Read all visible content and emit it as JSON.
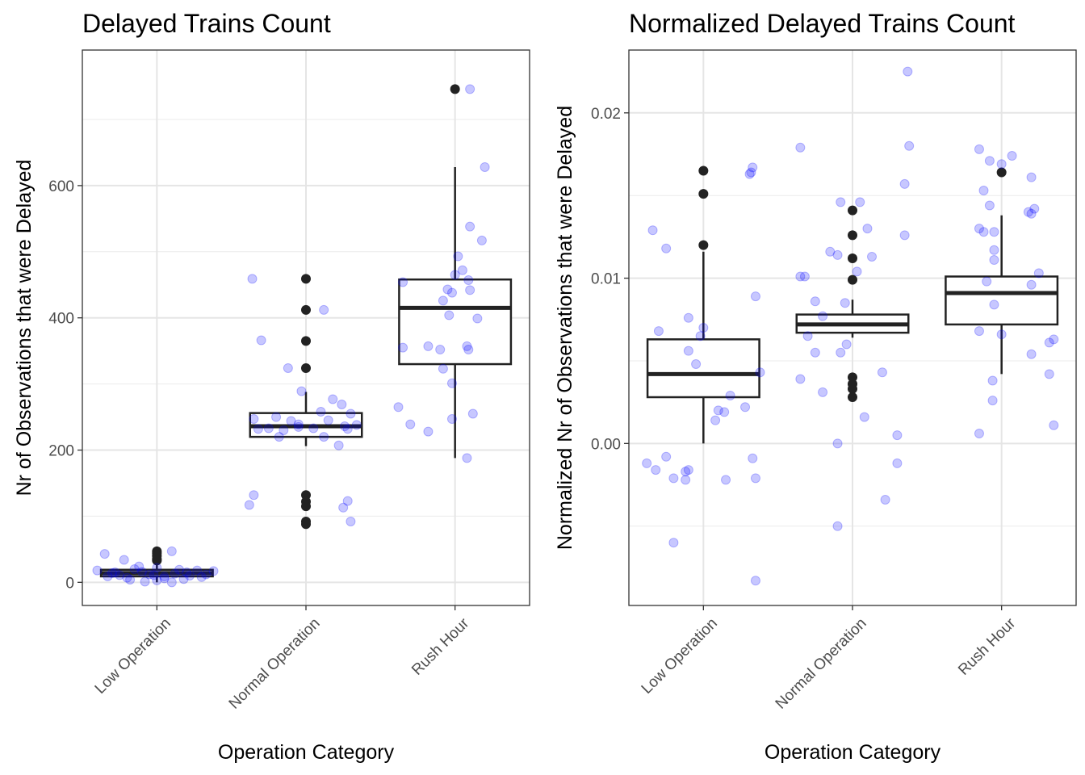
{
  "chart_data": [
    {
      "type": "boxplot",
      "title": "Delayed Trains Count",
      "xlabel": "Operation Category",
      "ylabel": "Nr of Observations that were Delayed",
      "categories": [
        "Low Operation",
        "Normal Operation",
        "Rush Hour"
      ],
      "ylim": [
        -35,
        805
      ],
      "yticks": [
        0,
        200,
        400,
        600
      ],
      "ytick_labels": [
        "0",
        "200",
        "400",
        "600"
      ],
      "grid": true,
      "point_color": "#0000ff",
      "box_color": "#222222",
      "boxes": [
        {
          "category": "Low Operation",
          "q1": 9,
          "median": 14,
          "q3": 19,
          "whisker_low": 0,
          "whisker_high": 33
        },
        {
          "category": "Normal Operation",
          "q1": 220,
          "median": 236,
          "q3": 256,
          "whisker_low": 206,
          "whisker_high": 288
        },
        {
          "category": "Rush Hour",
          "q1": 330,
          "median": 415,
          "q3": 458,
          "whisker_low": 188,
          "whisker_high": 628
        }
      ],
      "outliers": [
        {
          "category": "Low Operation",
          "values": [
            47,
            44,
            40,
            35,
            33
          ]
        },
        {
          "category": "Normal Operation",
          "values": [
            459,
            412,
            365,
            324,
            132,
            122,
            115,
            92,
            88
          ]
        },
        {
          "category": "Rush Hour",
          "values": [
            746
          ]
        }
      ],
      "jitter_points": [
        {
          "category": "Low Operation",
          "points": [
            [
              -0.35,
              43
            ],
            [
              -0.22,
              34
            ],
            [
              0.1,
              47
            ],
            [
              -0.4,
              18
            ],
            [
              -0.3,
              14
            ],
            [
              -0.25,
              11
            ],
            [
              -0.15,
              20
            ],
            [
              -0.1,
              16
            ],
            [
              -0.05,
              12
            ],
            [
              0.05,
              9
            ],
            [
              0.12,
              13
            ],
            [
              0.2,
              15
            ],
            [
              0.27,
              18
            ],
            [
              0.33,
              12
            ],
            [
              0.38,
              17
            ],
            [
              -0.33,
              9
            ],
            [
              -0.2,
              7
            ],
            [
              -0.18,
              4
            ],
            [
              -0.08,
              1
            ],
            [
              0.0,
              3
            ],
            [
              0.05,
              6
            ],
            [
              0.1,
              0
            ],
            [
              0.18,
              5
            ],
            [
              0.22,
              10
            ],
            [
              0.3,
              8
            ],
            [
              -0.12,
              24
            ],
            [
              0.0,
              22
            ],
            [
              -0.28,
              15
            ],
            [
              0.15,
              19
            ],
            [
              -0.02,
              11
            ]
          ]
        },
        {
          "category": "Normal Operation",
          "points": [
            [
              -0.36,
              459
            ],
            [
              0.12,
              412
            ],
            [
              -0.3,
              366
            ],
            [
              -0.12,
              324
            ],
            [
              -0.03,
              289
            ],
            [
              0.18,
              277
            ],
            [
              0.24,
              269
            ],
            [
              0.1,
              258
            ],
            [
              0.3,
              255
            ],
            [
              -0.2,
              250
            ],
            [
              -0.1,
              244
            ],
            [
              -0.35,
              247
            ],
            [
              -0.05,
              239
            ],
            [
              0.15,
              245
            ],
            [
              0.26,
              236
            ],
            [
              0.34,
              238
            ],
            [
              0.28,
              232
            ],
            [
              -0.25,
              233
            ],
            [
              -0.32,
              232
            ],
            [
              -0.15,
              230
            ],
            [
              -0.05,
              235
            ],
            [
              0.05,
              233
            ],
            [
              0.12,
              220
            ],
            [
              0.22,
              207
            ],
            [
              -0.18,
              220
            ],
            [
              -0.38,
              117
            ],
            [
              -0.35,
              132
            ],
            [
              0.25,
              113
            ],
            [
              0.28,
              123
            ],
            [
              0.3,
              92
            ]
          ]
        },
        {
          "category": "Rush Hour",
          "points": [
            [
              0.1,
              746
            ],
            [
              0.2,
              628
            ],
            [
              0.1,
              538
            ],
            [
              0.18,
              517
            ],
            [
              0.02,
              493
            ],
            [
              0.05,
              472
            ],
            [
              0.0,
              465
            ],
            [
              0.09,
              457
            ],
            [
              -0.35,
              454
            ],
            [
              -0.05,
              443
            ],
            [
              0.1,
              442
            ],
            [
              -0.02,
              438
            ],
            [
              -0.08,
              426
            ],
            [
              -0.04,
              404
            ],
            [
              0.15,
              399
            ],
            [
              -0.18,
              357
            ],
            [
              -0.35,
              355
            ],
            [
              -0.1,
              352
            ],
            [
              0.08,
              357
            ],
            [
              0.09,
              352
            ],
            [
              -0.08,
              323
            ],
            [
              -0.02,
              301
            ],
            [
              -0.38,
              265
            ],
            [
              -0.02,
              247
            ],
            [
              0.12,
              255
            ],
            [
              -0.3,
              239
            ],
            [
              -0.18,
              228
            ],
            [
              0.08,
              188
            ]
          ]
        }
      ]
    },
    {
      "type": "boxplot",
      "title": "Normalized Delayed Trains Count",
      "xlabel": "Operation Category",
      "ylabel": "Normalized Nr of Observations that were Delayed",
      "categories": [
        "Low Operation",
        "Normal Operation",
        "Rush Hour"
      ],
      "ylim": [
        -0.0098,
        0.0238
      ],
      "yticks": [
        0.0,
        0.01,
        0.02
      ],
      "ytick_labels": [
        "0.00",
        "0.01",
        "0.02"
      ],
      "grid": true,
      "point_color": "#0000ff",
      "box_color": "#222222",
      "boxes": [
        {
          "category": "Low Operation",
          "q1": 0.0028,
          "median": 0.0042,
          "q3": 0.0063,
          "whisker_low": 0.0,
          "whisker_high": 0.0116
        },
        {
          "category": "Normal Operation",
          "q1": 0.0067,
          "median": 0.0072,
          "q3": 0.0078,
          "whisker_low": 0.0064,
          "whisker_high": 0.0087
        },
        {
          "category": "Rush Hour",
          "q1": 0.0072,
          "median": 0.0091,
          "q3": 0.0101,
          "whisker_low": 0.0042,
          "whisker_high": 0.0138
        }
      ],
      "outliers": [
        {
          "category": "Low Operation",
          "values": [
            0.0165,
            0.0151,
            0.012
          ]
        },
        {
          "category": "Normal Operation",
          "values": [
            0.0141,
            0.0126,
            0.0112,
            0.0099,
            0.004,
            0.0036,
            0.0033,
            0.0028
          ]
        },
        {
          "category": "Rush Hour",
          "values": [
            0.0164
          ]
        }
      ],
      "jitter_points": [
        {
          "category": "Low Operation",
          "points": [
            [
              0.33,
              0.0167
            ],
            [
              0.31,
              0.0163
            ],
            [
              0.32,
              0.0164
            ],
            [
              -0.34,
              0.0129
            ],
            [
              -0.25,
              0.0118
            ],
            [
              0.35,
              0.0089
            ],
            [
              -0.1,
              0.0076
            ],
            [
              0.0,
              0.007
            ],
            [
              -0.3,
              0.0068
            ],
            [
              -0.02,
              0.0065
            ],
            [
              -0.1,
              0.0056
            ],
            [
              -0.05,
              0.0048
            ],
            [
              0.38,
              0.0043
            ],
            [
              0.18,
              0.0029
            ],
            [
              0.1,
              0.002
            ],
            [
              0.14,
              0.0019
            ],
            [
              0.28,
              0.0022
            ],
            [
              0.08,
              0.0014
            ],
            [
              -0.25,
              -0.0008
            ],
            [
              -0.38,
              -0.0012
            ],
            [
              -0.32,
              -0.0016
            ],
            [
              -0.1,
              -0.0016
            ],
            [
              -0.12,
              -0.0017
            ],
            [
              -0.2,
              -0.0021
            ],
            [
              -0.12,
              -0.0022
            ],
            [
              0.15,
              -0.0022
            ],
            [
              0.35,
              -0.0021
            ],
            [
              0.33,
              -0.0009
            ],
            [
              -0.2,
              -0.006
            ],
            [
              0.35,
              -0.0083
            ]
          ]
        },
        {
          "category": "Normal Operation",
          "points": [
            [
              -0.35,
              0.0179
            ],
            [
              0.37,
              0.0225
            ],
            [
              0.38,
              0.018
            ],
            [
              -0.08,
              0.0146
            ],
            [
              0.05,
              0.0146
            ],
            [
              0.35,
              0.0157
            ],
            [
              0.1,
              0.013
            ],
            [
              0.35,
              0.0126
            ],
            [
              -0.15,
              0.0116
            ],
            [
              -0.1,
              0.0114
            ],
            [
              0.13,
              0.0113
            ],
            [
              -0.35,
              0.0101
            ],
            [
              -0.32,
              0.0101
            ],
            [
              0.03,
              0.0104
            ],
            [
              -0.25,
              0.0086
            ],
            [
              -0.05,
              0.0085
            ],
            [
              -0.2,
              0.0077
            ],
            [
              -0.3,
              0.0065
            ],
            [
              -0.25,
              0.0055
            ],
            [
              -0.08,
              0.0055
            ],
            [
              -0.04,
              0.006
            ],
            [
              0.2,
              0.0043
            ],
            [
              -0.35,
              0.0039
            ],
            [
              -0.2,
              0.0031
            ],
            [
              0.08,
              0.0016
            ],
            [
              -0.1,
              0.0
            ],
            [
              0.3,
              0.0005
            ],
            [
              0.3,
              -0.0012
            ],
            [
              0.22,
              -0.0034
            ],
            [
              -0.1,
              -0.005
            ]
          ]
        },
        {
          "category": "Rush Hour",
          "points": [
            [
              -0.15,
              0.0178
            ],
            [
              -0.08,
              0.0171
            ],
            [
              0.07,
              0.0174
            ],
            [
              0.0,
              0.0169
            ],
            [
              -0.12,
              0.0153
            ],
            [
              -0.08,
              0.0144
            ],
            [
              0.2,
              0.0161
            ],
            [
              0.2,
              0.0139
            ],
            [
              0.22,
              0.0142
            ],
            [
              0.18,
              0.014
            ],
            [
              -0.15,
              0.013
            ],
            [
              -0.12,
              0.0128
            ],
            [
              -0.05,
              0.0128
            ],
            [
              -0.05,
              0.0117
            ],
            [
              -0.05,
              0.0111
            ],
            [
              0.25,
              0.0103
            ],
            [
              -0.1,
              0.0098
            ],
            [
              0.2,
              0.0096
            ],
            [
              -0.05,
              0.0084
            ],
            [
              -0.15,
              0.0068
            ],
            [
              0.0,
              0.0066
            ],
            [
              0.35,
              0.0063
            ],
            [
              0.32,
              0.0061
            ],
            [
              0.2,
              0.0054
            ],
            [
              0.32,
              0.0042
            ],
            [
              -0.06,
              0.0038
            ],
            [
              -0.06,
              0.0026
            ],
            [
              -0.15,
              0.0006
            ],
            [
              0.35,
              0.0011
            ]
          ]
        }
      ]
    }
  ]
}
